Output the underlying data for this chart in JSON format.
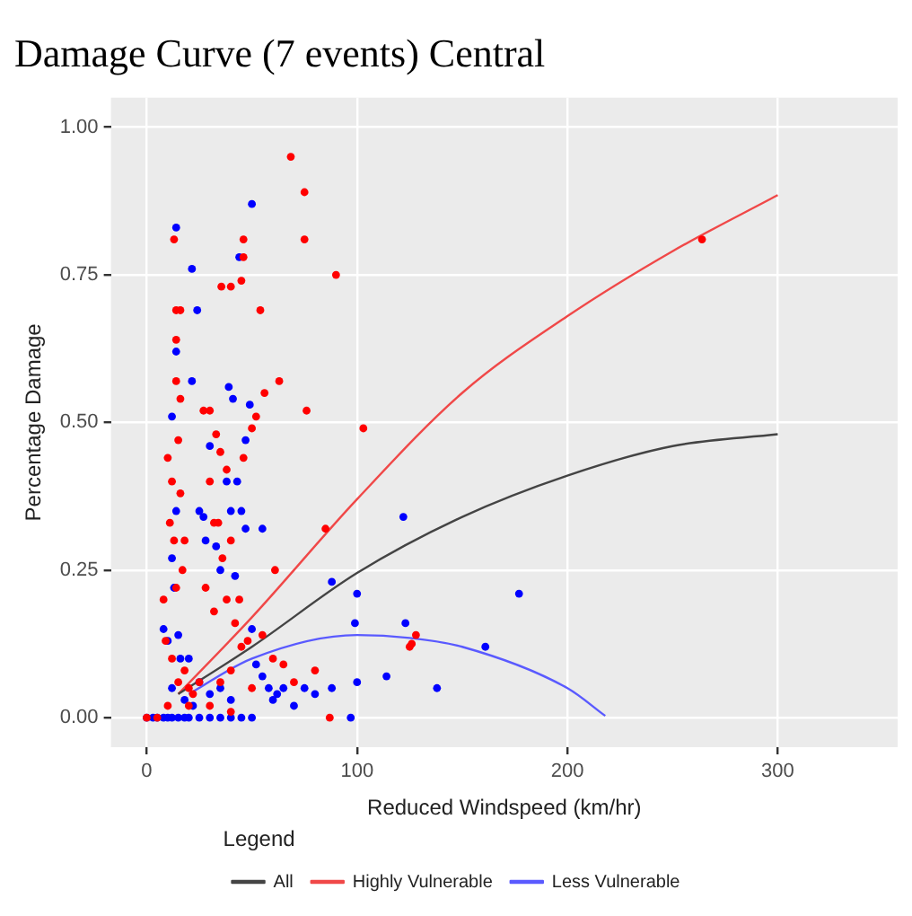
{
  "chart_data": {
    "type": "scatter",
    "title": "Damage Curve (7 events) Central",
    "xlabel": "Reduced Windspeed (km/hr)",
    "ylabel": "Percentage Damage",
    "legend_title": "Legend",
    "legend": "bottom",
    "grid": true,
    "xlim": [
      -17,
      357
    ],
    "xticks": [
      0,
      100,
      200,
      300
    ],
    "ylim": [
      -0.05,
      1.05
    ],
    "yticks": [
      {
        "value": 0,
        "label": "0.00"
      },
      {
        "value": 0.25,
        "label": "0.25"
      },
      {
        "value": 0.5,
        "label": "0.50"
      },
      {
        "value": 0.75,
        "label": "0.75"
      },
      {
        "value": 1,
        "label": "1.00"
      }
    ],
    "series": [
      {
        "type": "scatter",
        "marker": "circle",
        "color": "#ff0000",
        "x": [
          68.5,
          75,
          75,
          90,
          46,
          46,
          35.5,
          40,
          45,
          54,
          13,
          14,
          16,
          14,
          63,
          56,
          14,
          16,
          76,
          103,
          264,
          128,
          125,
          85,
          87,
          126,
          61,
          5,
          8,
          10,
          12,
          11,
          13,
          15,
          16,
          17,
          18,
          14,
          9,
          12,
          15,
          18,
          20,
          22,
          25,
          27,
          30,
          33,
          35,
          30,
          32,
          34,
          38,
          40,
          36,
          28,
          32,
          38,
          42,
          45,
          48,
          44,
          46,
          50,
          52,
          40,
          35,
          50,
          55,
          60,
          65,
          70,
          80,
          10,
          20,
          30,
          40,
          0
        ],
        "values": [
          0.95,
          0.89,
          0.81,
          0.75,
          0.81,
          0.78,
          0.73,
          0.73,
          0.74,
          0.69,
          0.81,
          0.69,
          0.69,
          0.64,
          0.57,
          0.55,
          0.57,
          0.54,
          0.52,
          0.49,
          0.81,
          0.14,
          0.12,
          0.32,
          0,
          0.125,
          0.25,
          0,
          0.2,
          0.44,
          0.4,
          0.33,
          0.3,
          0.47,
          0.38,
          0.25,
          0.3,
          0.22,
          0.13,
          0.1,
          0.06,
          0.08,
          0.05,
          0.04,
          0.06,
          0.52,
          0.52,
          0.48,
          0.45,
          0.4,
          0.33,
          0.33,
          0.42,
          0.3,
          0.27,
          0.22,
          0.18,
          0.2,
          0.16,
          0.12,
          0.13,
          0.2,
          0.44,
          0.49,
          0.51,
          0.08,
          0.06,
          0.05,
          0.14,
          0.1,
          0.09,
          0.06,
          0.08,
          0.02,
          0.02,
          0.02,
          0.01,
          0
        ]
      },
      {
        "type": "scatter",
        "marker": "circle",
        "color": "#0000ff",
        "x": [
          14,
          50,
          21.5,
          44,
          24,
          14,
          21.5,
          39,
          41,
          49,
          12,
          114,
          138,
          122,
          123,
          100,
          99,
          88,
          97,
          88,
          100,
          177,
          161,
          0,
          3,
          5,
          8,
          10,
          12,
          15,
          18,
          20,
          25,
          30,
          35,
          40,
          45,
          50,
          8,
          10,
          12,
          13,
          14,
          15,
          16,
          12,
          18,
          22,
          25,
          27,
          28,
          30,
          33,
          35,
          38,
          40,
          42,
          43,
          45,
          47,
          50,
          52,
          55,
          58,
          60,
          62,
          65,
          70,
          75,
          80,
          55,
          47,
          25,
          35,
          40,
          30,
          20
        ],
        "values": [
          0.83,
          0.87,
          0.76,
          0.78,
          0.69,
          0.62,
          0.57,
          0.56,
          0.54,
          0.53,
          0.51,
          0.07,
          0.05,
          0.34,
          0.16,
          0.21,
          0.16,
          0.05,
          0,
          0.23,
          0.06,
          0.21,
          0.12,
          0,
          0,
          0,
          0,
          0,
          0,
          0,
          0,
          0,
          0,
          0,
          0,
          0,
          0,
          0,
          0.15,
          0.13,
          0.27,
          0.22,
          0.35,
          0.14,
          0.1,
          0.05,
          0.03,
          0.02,
          0.35,
          0.34,
          0.3,
          0.46,
          0.29,
          0.25,
          0.4,
          0.35,
          0.24,
          0.4,
          0.35,
          0.32,
          0.15,
          0.09,
          0.07,
          0.05,
          0.03,
          0.04,
          0.05,
          0.02,
          0.05,
          0.04,
          0.32,
          0.47,
          0.06,
          0.05,
          0.03,
          0.04,
          0.1
        ]
      },
      {
        "type": "line",
        "marker": "none",
        "name": "All",
        "color": "#444444",
        "x": [
          15,
          50,
          100,
          150,
          200,
          250,
          300
        ],
        "values": [
          0.04,
          0.12,
          0.245,
          0.34,
          0.41,
          0.46,
          0.48
        ]
      },
      {
        "type": "line",
        "marker": "none",
        "name": "Highly Vulnerable",
        "color": "#f04848",
        "x": [
          15,
          50,
          100,
          150,
          200,
          250,
          300
        ],
        "values": [
          0.04,
          0.17,
          0.37,
          0.55,
          0.68,
          0.79,
          0.885
        ]
      },
      {
        "type": "line",
        "marker": "none",
        "name": "Less Vulnerable",
        "color": "#5a5aff",
        "x": [
          20,
          50,
          100,
          125,
          150,
          200,
          218
        ],
        "values": [
          0.04,
          0.1,
          0.14,
          0.135,
          0.12,
          0.05,
          0.003
        ]
      }
    ]
  }
}
